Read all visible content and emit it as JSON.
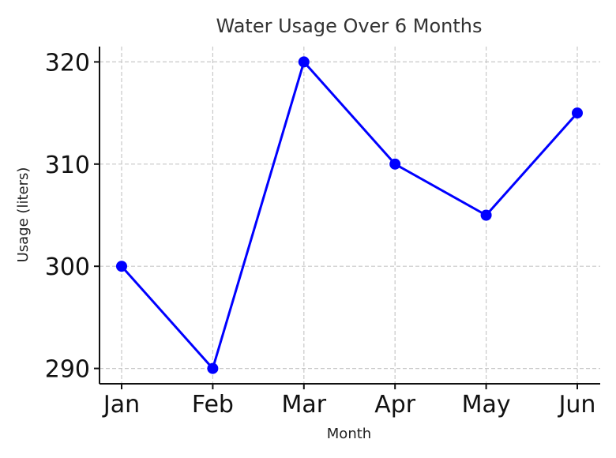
{
  "chart_data": {
    "type": "line",
    "title": "Water Usage Over 6 Months",
    "xlabel": "Month",
    "ylabel": "Usage (liters)",
    "categories": [
      "Jan",
      "Feb",
      "Mar",
      "Apr",
      "May",
      "Jun"
    ],
    "series": [
      {
        "values": [
          300,
          290,
          320,
          310,
          305,
          315
        ],
        "color": "#0000ff",
        "marker": "circle"
      }
    ],
    "ylim": [
      288.5,
      321.5
    ],
    "yticks": [
      290,
      300,
      310,
      320
    ],
    "grid": true,
    "legend": false
  }
}
